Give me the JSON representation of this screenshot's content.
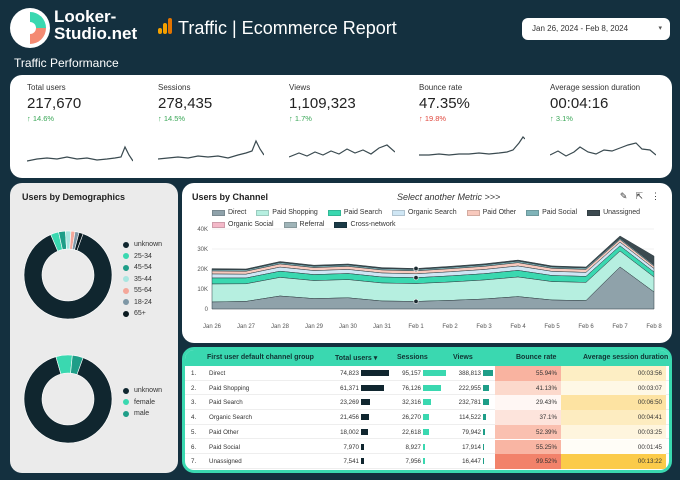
{
  "header": {
    "logo_line1": "Looker-",
    "logo_line2": "Studio.net",
    "report_title": "Traffic | Ecommerce Report",
    "date_range": "Jan 26, 2024 - Feb 8, 2024",
    "section_title": "Traffic Performance"
  },
  "kpis": [
    {
      "label": "Total users",
      "value": "217,670",
      "delta": "↑ 14.6%",
      "trend": "up-good"
    },
    {
      "label": "Sessions",
      "value": "278,435",
      "delta": "↑ 14.5%",
      "trend": "up-good"
    },
    {
      "label": "Views",
      "value": "1,109,323",
      "delta": "↑ 1.7%",
      "trend": "up-good"
    },
    {
      "label": "Bounce rate",
      "value": "47.35%",
      "delta": "↑ 19.8%",
      "trend": "up-bad"
    },
    {
      "label": "Average session duration",
      "value": "00:04:16",
      "delta": "↑ 3.1%",
      "trend": "up-good"
    }
  ],
  "demographics": {
    "title": "Users by Demographics",
    "age_legend": [
      "unknown",
      "25-34",
      "45-54",
      "35-44",
      "55-64",
      "18-24",
      "65+"
    ],
    "age_colors": [
      "#10262f",
      "#3ad8b0",
      "#1e9e88",
      "#a8e6e0",
      "#f4a79a",
      "#7e97a6",
      "#0a1a20"
    ],
    "age_values": [
      0.88,
      0.03,
      0.025,
      0.02,
      0.015,
      0.015,
      0.015
    ],
    "gender_legend": [
      "unknown",
      "female",
      "male"
    ],
    "gender_colors": [
      "#10262f",
      "#3ad8b0",
      "#1e9e88"
    ],
    "gender_values": [
      0.9,
      0.06,
      0.04
    ]
  },
  "channel_chart": {
    "title": "Users by Channel",
    "metric_select": "Select another Metric >>>",
    "tool_icons": [
      "edit-icon",
      "export-icon",
      "more-icon"
    ],
    "legend": [
      {
        "name": "Direct",
        "color": "#8fa2aa"
      },
      {
        "name": "Paid Shopping",
        "color": "#b6efe0"
      },
      {
        "name": "Paid Search",
        "color": "#3ad8b0"
      },
      {
        "name": "Organic Search",
        "color": "#cfe6f4"
      },
      {
        "name": "Paid Other",
        "color": "#f8c9bd"
      },
      {
        "name": "Paid Social",
        "color": "#7fb3b8"
      },
      {
        "name": "Unassigned",
        "color": "#3c4a50"
      },
      {
        "name": "Organic Social",
        "color": "#f3b8c8"
      },
      {
        "name": "Referral",
        "color": "#9fb4b8"
      },
      {
        "name": "Cross-network",
        "color": "#1a3a46"
      }
    ],
    "y_ticks": [
      "40K",
      "30K",
      "20K",
      "10K",
      "0"
    ],
    "x_ticks": [
      "Jan 26",
      "Jan 27",
      "Jan 28",
      "Jan 29",
      "Jan 30",
      "Jan 31",
      "Feb 1",
      "Feb 2",
      "Feb 3",
      "Feb 4",
      "Feb 5",
      "Feb 6",
      "Feb 7",
      "Feb 8"
    ]
  },
  "chart_data": {
    "type": "area",
    "title": "Users by Channel",
    "x": [
      "Jan 26",
      "Jan 27",
      "Jan 28",
      "Jan 29",
      "Jan 30",
      "Jan 31",
      "Feb 1",
      "Feb 2",
      "Feb 3",
      "Feb 4",
      "Feb 5",
      "Feb 6",
      "Feb 7",
      "Feb 8"
    ],
    "ylim": [
      0,
      40000
    ],
    "stacked": true,
    "series": [
      {
        "name": "Direct",
        "values": [
          3500,
          3800,
          6500,
          5200,
          5600,
          4000,
          3800,
          4300,
          5000,
          6200,
          4500,
          4200,
          21000,
          8500
        ]
      },
      {
        "name": "Paid Shopping",
        "values": [
          9000,
          8800,
          9300,
          9000,
          9100,
          9000,
          8900,
          9200,
          9500,
          9800,
          9200,
          9100,
          8000,
          7500
        ]
      },
      {
        "name": "Paid Search",
        "values": [
          3000,
          2900,
          3100,
          3000,
          3050,
          3000,
          2950,
          3050,
          3150,
          3300,
          3050,
          3000,
          2600,
          2500
        ]
      },
      {
        "name": "Organic Search",
        "values": [
          2000,
          1900,
          2050,
          2000,
          2020,
          2000,
          1950,
          2050,
          2100,
          2200,
          2050,
          2000,
          1800,
          1700
        ]
      },
      {
        "name": "Paid Other",
        "values": [
          1500,
          1450,
          1550,
          1500,
          1520,
          1500,
          1480,
          1520,
          1560,
          1650,
          1520,
          1500,
          1300,
          1200
        ]
      },
      {
        "name": "Paid Social",
        "values": [
          700,
          680,
          720,
          700,
          710,
          700,
          690,
          710,
          730,
          760,
          710,
          700,
          600,
          560
        ]
      },
      {
        "name": "Unassigned",
        "values": [
          500,
          480,
          520,
          500,
          510,
          500,
          490,
          510,
          530,
          560,
          510,
          500,
          1200,
          4500
        ]
      }
    ]
  },
  "table": {
    "columns": [
      "First user default channel group",
      "Total users ▾",
      "Sessions",
      "Views",
      "Bounce rate",
      "Average session duration"
    ],
    "rows": [
      {
        "idx": "1.",
        "channel": "Direct",
        "users": "74,823",
        "sessions": "95,157",
        "views": "388,813",
        "bounce": "55.94%",
        "duration": "00:03:56",
        "users_frac": 1.0,
        "sessions_frac": 1.0,
        "views_frac": 1.0,
        "bounce_color": "#f9b3a0",
        "dur_color": "#fdeec4"
      },
      {
        "idx": "2.",
        "channel": "Paid Shopping",
        "users": "61,371",
        "sessions": "76,126",
        "views": "222,955",
        "bounce": "41.13%",
        "duration": "00:03:07",
        "users_frac": 0.82,
        "sessions_frac": 0.8,
        "views_frac": 0.57,
        "bounce_color": "#fcd9cc",
        "dur_color": "#fef8e6"
      },
      {
        "idx": "3.",
        "channel": "Paid Search",
        "users": "23,269",
        "sessions": "32,316",
        "views": "232,781",
        "bounce": "29.43%",
        "duration": "00:06:50",
        "users_frac": 0.31,
        "sessions_frac": 0.34,
        "views_frac": 0.6,
        "bounce_color": "#fff7f4",
        "dur_color": "#fde3a2"
      },
      {
        "idx": "4.",
        "channel": "Organic Search",
        "users": "21,456",
        "sessions": "26,270",
        "views": "114,522",
        "bounce": "37.1%",
        "duration": "00:04:41",
        "users_frac": 0.29,
        "sessions_frac": 0.28,
        "views_frac": 0.29,
        "bounce_color": "#fde4dc",
        "dur_color": "#fdecc0"
      },
      {
        "idx": "5.",
        "channel": "Paid Other",
        "users": "18,002",
        "sessions": "22,618",
        "views": "79,942",
        "bounce": "52.39%",
        "duration": "00:03:25",
        "users_frac": 0.24,
        "sessions_frac": 0.24,
        "views_frac": 0.21,
        "bounce_color": "#fac0b0",
        "dur_color": "#fef5de"
      },
      {
        "idx": "6.",
        "channel": "Paid Social",
        "users": "7,970",
        "sessions": "8,927",
        "views": "17,914",
        "bounce": "55.25%",
        "duration": "00:01:45",
        "users_frac": 0.11,
        "sessions_frac": 0.09,
        "views_frac": 0.05,
        "bounce_color": "#f9b5a3",
        "dur_color": "#fffdf7"
      },
      {
        "idx": "7.",
        "channel": "Unassigned",
        "users": "7,541",
        "sessions": "7,956",
        "views": "16,447",
        "bounce": "99.52%",
        "duration": "00:13:22",
        "users_frac": 0.1,
        "sessions_frac": 0.08,
        "views_frac": 0.04,
        "bounce_color": "#f2826a",
        "dur_color": "#fbcb4a"
      }
    ]
  }
}
